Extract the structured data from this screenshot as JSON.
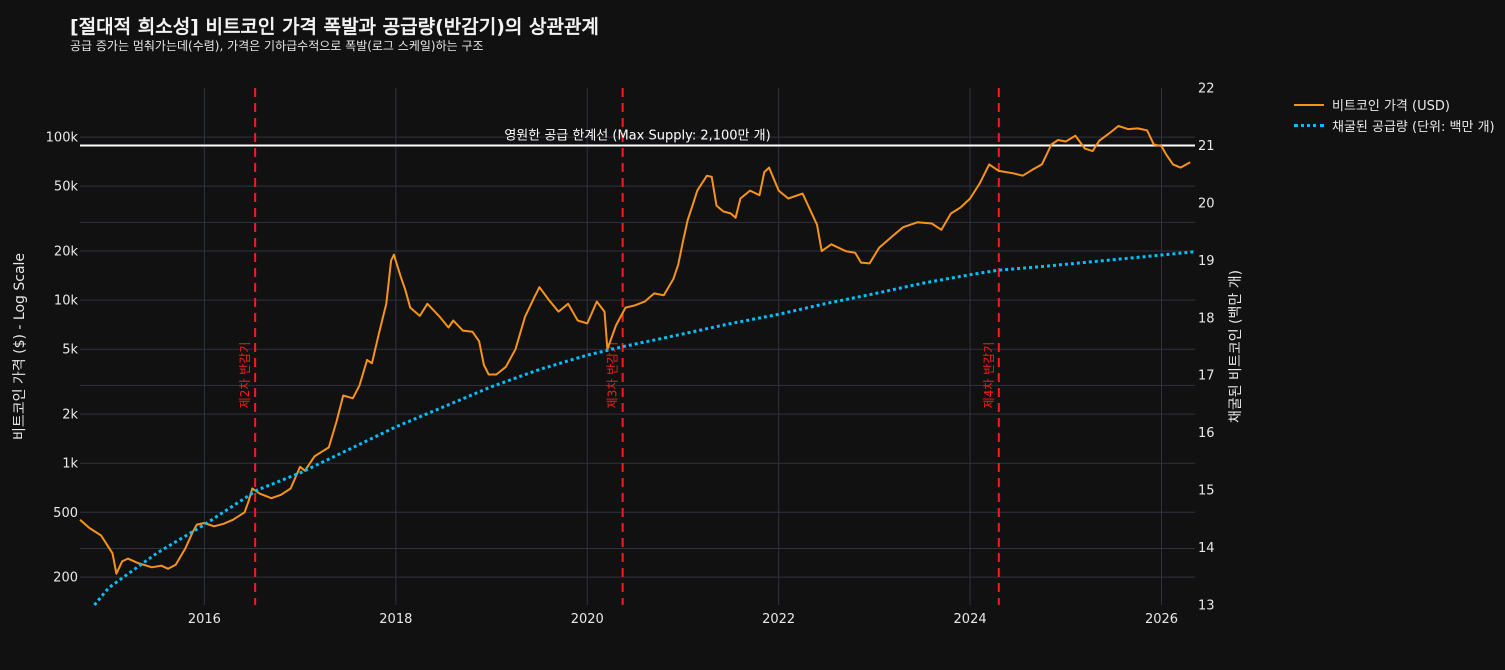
{
  "title": "[절대적 희소성] 비트코인 가격 폭발과 공급량(반감기)의 상관관계",
  "subtitle": "공급 증가는 멈춰가는데(수렴), 가격은 기하급수적으로 폭발(로그 스케일)하는 구조",
  "colors": {
    "background": "#111111",
    "price": "#f7931a",
    "supply": "#00bfff",
    "halving": "#ff1a1a",
    "max_supply_line": "#ffffff",
    "grid": "#2f3340"
  },
  "chart_data": {
    "type": "line",
    "x_axis": {
      "ticks": [
        2016,
        2018,
        2020,
        2022,
        2024,
        2026
      ],
      "range": [
        2014.7,
        2026.35
      ]
    },
    "y_left": {
      "label": "비트코인 가격 ($) - Log Scale",
      "scale": "log",
      "range": [
        135,
        200000
      ],
      "tick_values": [
        200,
        500,
        1000,
        2000,
        5000,
        10000,
        20000,
        50000,
        100000
      ],
      "tick_labels": [
        "200",
        "500",
        "1k",
        "2k",
        "5k",
        "10k",
        "20k",
        "50k",
        "100k"
      ]
    },
    "y_right": {
      "label": "채굴된 비트코인 (백만 개)",
      "scale": "linear",
      "range": [
        13,
        22
      ],
      "tick_values": [
        13,
        14,
        15,
        16,
        17,
        18,
        19,
        20,
        21,
        22
      ]
    },
    "grid": true,
    "legend_position": "top-right outside",
    "series": [
      {
        "name": "비트코인 가격 (USD)",
        "axis": "left",
        "style": "solid",
        "x": [
          2014.7,
          2014.8,
          2014.92,
          2015.04,
          2015.08,
          2015.14,
          2015.2,
          2015.3,
          2015.45,
          2015.55,
          2015.62,
          2015.7,
          2015.8,
          2015.88,
          2015.92,
          2016.0,
          2016.1,
          2016.2,
          2016.3,
          2016.42,
          2016.46,
          2016.5,
          2016.58,
          2016.7,
          2016.8,
          2016.9,
          2017.0,
          2017.05,
          2017.15,
          2017.2,
          2017.3,
          2017.38,
          2017.45,
          2017.55,
          2017.62,
          2017.7,
          2017.75,
          2017.83,
          2017.9,
          2017.95,
          2017.98,
          2018.05,
          2018.1,
          2018.15,
          2018.25,
          2018.33,
          2018.45,
          2018.55,
          2018.6,
          2018.7,
          2018.8,
          2018.87,
          2018.92,
          2018.97,
          2019.05,
          2019.15,
          2019.25,
          2019.35,
          2019.45,
          2019.5,
          2019.6,
          2019.7,
          2019.8,
          2019.9,
          2020.0,
          2020.1,
          2020.18,
          2020.21,
          2020.3,
          2020.4,
          2020.5,
          2020.6,
          2020.7,
          2020.8,
          2020.9,
          2020.95,
          2021.0,
          2021.05,
          2021.1,
          2021.15,
          2021.25,
          2021.3,
          2021.35,
          2021.42,
          2021.5,
          2021.55,
          2021.6,
          2021.7,
          2021.8,
          2021.85,
          2021.9,
          2022.0,
          2022.1,
          2022.25,
          2022.4,
          2022.45,
          2022.55,
          2022.7,
          2022.8,
          2022.86,
          2022.95,
          2023.05,
          2023.2,
          2023.3,
          2023.45,
          2023.6,
          2023.7,
          2023.8,
          2023.9,
          2024.0,
          2024.1,
          2024.2,
          2024.3,
          2024.45,
          2024.55,
          2024.65,
          2024.75,
          2024.85,
          2024.92,
          2025.0,
          2025.1,
          2025.2,
          2025.28,
          2025.35,
          2025.45,
          2025.55,
          2025.65,
          2025.75,
          2025.85,
          2025.92,
          2026.0,
          2026.05,
          2026.12,
          2026.2,
          2026.3
        ],
        "y": [
          450,
          400,
          360,
          280,
          210,
          250,
          260,
          245,
          230,
          235,
          225,
          238,
          300,
          380,
          420,
          430,
          410,
          425,
          450,
          500,
          580,
          700,
          650,
          610,
          640,
          700,
          950,
          900,
          1100,
          1150,
          1250,
          1800,
          2600,
          2500,
          3000,
          4300,
          4100,
          6500,
          9500,
          17500,
          19000,
          14000,
          11500,
          9000,
          8000,
          9500,
          8000,
          6800,
          7500,
          6500,
          6400,
          5600,
          4000,
          3500,
          3500,
          3900,
          5000,
          7900,
          10500,
          12000,
          10000,
          8500,
          9500,
          7500,
          7200,
          9800,
          8500,
          5000,
          7000,
          9000,
          9300,
          9800,
          11000,
          10700,
          13500,
          16500,
          23000,
          31000,
          38000,
          47000,
          58000,
          57000,
          38000,
          35000,
          34000,
          32000,
          42000,
          47000,
          44000,
          61000,
          65000,
          47000,
          42000,
          45000,
          29000,
          20000,
          22000,
          20000,
          19500,
          17000,
          16800,
          21000,
          25000,
          28000,
          30000,
          29500,
          27000,
          34000,
          37000,
          42000,
          52000,
          68000,
          62000,
          60000,
          58000,
          63000,
          68000,
          90000,
          96000,
          94000,
          102000,
          85000,
          82000,
          95000,
          105000,
          117000,
          112000,
          113000,
          110000,
          90000,
          88000,
          78000,
          68000,
          65000,
          70000
        ]
      },
      {
        "name": "채굴된 공급량 (단위: 백만 개)",
        "axis": "right",
        "style": "dotted",
        "x": [
          2014.85,
          2015.0,
          2015.5,
          2016.0,
          2016.55,
          2017.0,
          2017.5,
          2018.0,
          2018.5,
          2019.0,
          2019.5,
          2020.0,
          2020.38,
          2021.0,
          2021.5,
          2022.0,
          2022.5,
          2023.0,
          2023.5,
          2024.0,
          2024.3,
          2024.8,
          2025.3,
          2025.8,
          2026.35
        ],
        "y": [
          13.0,
          13.3,
          13.9,
          14.4,
          15.0,
          15.3,
          15.7,
          16.1,
          16.45,
          16.8,
          17.1,
          17.35,
          17.5,
          17.72,
          17.9,
          18.06,
          18.25,
          18.42,
          18.6,
          18.75,
          18.83,
          18.9,
          18.98,
          19.06,
          19.15
        ]
      }
    ],
    "reference_lines": {
      "max_supply": {
        "value": 21,
        "axis": "right",
        "label": "영원한 공급 한계선 (Max Supply: 2,100만 개)"
      },
      "halvings": [
        {
          "x": 2016.53,
          "label": "제2차 반감기"
        },
        {
          "x": 2020.37,
          "label": "제3차 반감기"
        },
        {
          "x": 2024.3,
          "label": "제4차 반감기"
        }
      ]
    }
  }
}
